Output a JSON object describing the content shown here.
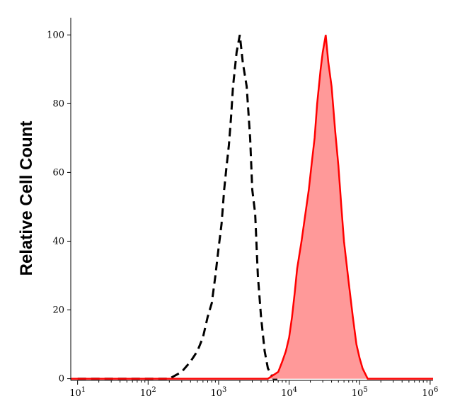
{
  "chart_data": {
    "type": "histogram-overlay",
    "y_label": "Relative Cell Count",
    "xscale": "log",
    "xlim": [
      8,
      1100000
    ],
    "ylim": [
      -0.5,
      105
    ],
    "xticks": [
      {
        "value": 10,
        "label": "10",
        "exp": "1"
      },
      {
        "value": 100,
        "label": "10",
        "exp": "2"
      },
      {
        "value": 1000,
        "label": "10",
        "exp": "3"
      },
      {
        "value": 10000,
        "label": "10",
        "exp": "4"
      },
      {
        "value": 100000,
        "label": "10",
        "exp": "5"
      },
      {
        "value": 1000000,
        "label": "10",
        "exp": "6"
      }
    ],
    "yticks": [
      0,
      20,
      40,
      60,
      80,
      100
    ],
    "series": [
      {
        "style": "dashed",
        "color": "#000000",
        "fill": "none",
        "x": [
          10,
          200,
          300,
          400,
          500,
          600,
          700,
          800,
          900,
          1000,
          1100,
          1200,
          1300,
          1400,
          1500,
          1600,
          1800,
          2000,
          2200,
          2500,
          2800,
          3000,
          3300,
          3600,
          4000,
          4500,
          5000,
          6000,
          8000
        ],
        "values": [
          0,
          0,
          2,
          5,
          8,
          12,
          18,
          22,
          30,
          38,
          45,
          55,
          62,
          68,
          76,
          85,
          95,
          100,
          92,
          85,
          70,
          55,
          48,
          30,
          18,
          8,
          3,
          0,
          0
        ]
      },
      {
        "style": "solid",
        "color": "#ff0000",
        "fill": "#ff9999",
        "x": [
          8,
          5000,
          7000,
          8000,
          9000,
          10000,
          11000,
          12000,
          13000,
          15000,
          17000,
          19000,
          21000,
          23000,
          25000,
          28000,
          30000,
          33000,
          36000,
          40000,
          45000,
          50000,
          55000,
          60000,
          70000,
          80000,
          90000,
          100000,
          110000,
          130000,
          1100000
        ],
        "values": [
          0,
          0,
          2,
          5,
          8,
          12,
          18,
          25,
          32,
          40,
          48,
          55,
          63,
          70,
          80,
          90,
          95,
          100,
          92,
          85,
          72,
          62,
          50,
          40,
          28,
          18,
          10,
          6,
          3,
          0,
          0
        ]
      }
    ]
  }
}
